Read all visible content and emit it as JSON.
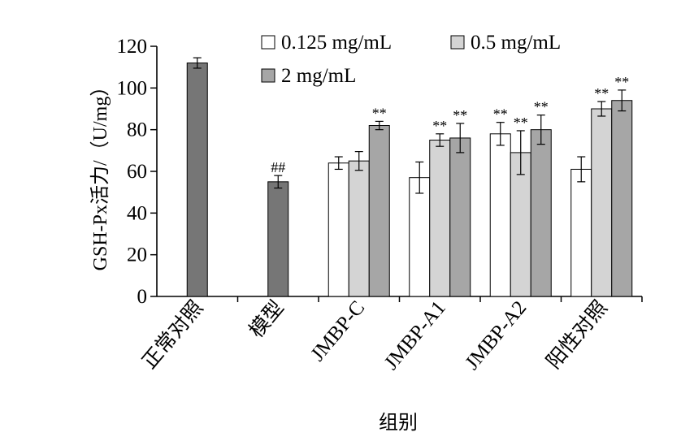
{
  "chart_data": {
    "type": "bar",
    "xlabel": "组别",
    "ylabel": "GSH-Px活力/（U/mg）",
    "ylim": [
      0,
      120
    ],
    "yticks": [
      0,
      20,
      40,
      60,
      80,
      100,
      120
    ],
    "legend_placement": "top",
    "groups": [
      {
        "label": "正常对照",
        "bars": [
          {
            "series": "control",
            "value": 112,
            "err": 2.5,
            "sig": ""
          }
        ]
      },
      {
        "label": "模型",
        "bars": [
          {
            "series": "model",
            "value": 55,
            "err": 3,
            "sig": "##"
          }
        ]
      },
      {
        "label": "JMBP-C",
        "bars": [
          {
            "series": "s1",
            "value": 64,
            "err": 3,
            "sig": ""
          },
          {
            "series": "s2",
            "value": 65,
            "err": 4.5,
            "sig": ""
          },
          {
            "series": "s3",
            "value": 82,
            "err": 2,
            "sig": "**"
          }
        ]
      },
      {
        "label": "JMBP-A1",
        "bars": [
          {
            "series": "s1",
            "value": 57,
            "err": 7.5,
            "sig": ""
          },
          {
            "series": "s2",
            "value": 75,
            "err": 3,
            "sig": "**"
          },
          {
            "series": "s3",
            "value": 76,
            "err": 7,
            "sig": "**"
          }
        ]
      },
      {
        "label": "JMBP-A2",
        "bars": [
          {
            "series": "s1",
            "value": 78,
            "err": 5.5,
            "sig": "**"
          },
          {
            "series": "s2",
            "value": 69,
            "err": 10.5,
            "sig": "**"
          },
          {
            "series": "s3",
            "value": 80,
            "err": 7,
            "sig": "**"
          }
        ]
      },
      {
        "label": "阳性对照",
        "bars": [
          {
            "series": "s1",
            "value": 61,
            "err": 6,
            "sig": ""
          },
          {
            "series": "s2",
            "value": 90,
            "err": 3.5,
            "sig": "**"
          },
          {
            "series": "s3",
            "value": 94,
            "err": 5,
            "sig": "**"
          }
        ]
      }
    ],
    "series": [
      {
        "key": "s1",
        "name": "0.125 mg/mL",
        "color": "#ffffff"
      },
      {
        "key": "s2",
        "name": "0.5 mg/mL",
        "color": "#d4d4d4"
      },
      {
        "key": "s3",
        "name": "2 mg/mL",
        "color": "#a6a6a6"
      }
    ],
    "single_bar_colors": {
      "control": "#767676",
      "model": "#767676"
    }
  }
}
